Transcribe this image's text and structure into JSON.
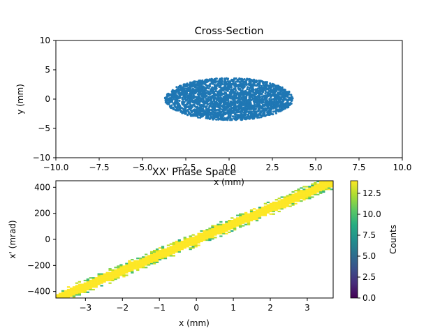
{
  "chart_data": [
    {
      "type": "scatter",
      "title": "Cross-Section",
      "xlabel": "x (mm)",
      "ylabel": "y (mm)",
      "xlim": [
        -10,
        10
      ],
      "ylim": [
        -10,
        10
      ],
      "xticks": [
        "−10.0",
        "−7.5",
        "−5.0",
        "−2.5",
        "0.0",
        "2.5",
        "5.0",
        "7.5",
        "10.0"
      ],
      "yticks": [
        "10",
        "5",
        "0",
        "−5",
        "−10"
      ],
      "grid": false,
      "distribution": {
        "shape": "uniform ellipse",
        "center": [
          0,
          0
        ],
        "semi_axis_x": 3.7,
        "semi_axis_y": 3.6
      },
      "marker_color": "#1f77b4"
    },
    {
      "type": "heatmap",
      "title": "XX' Phase Space",
      "xlabel": "x (mm)",
      "ylabel": "x' (mrad)",
      "xlim": [
        -3.8,
        3.7
      ],
      "ylim": [
        -450,
        450
      ],
      "xticks": [
        "−3",
        "−2",
        "−1",
        "0",
        "1",
        "2",
        "3"
      ],
      "yticks": [
        "400",
        "200",
        "0",
        "−200",
        "−400"
      ],
      "band": {
        "slope_mrad_per_mm": 120,
        "half_width_mrad": 45
      },
      "colorbar": {
        "label": "Counts",
        "range": [
          0,
          14
        ],
        "ticks": [
          "0.0",
          "2.5",
          "5.0",
          "7.5",
          "10.0",
          "12.5"
        ],
        "colormap": "viridis"
      }
    }
  ]
}
